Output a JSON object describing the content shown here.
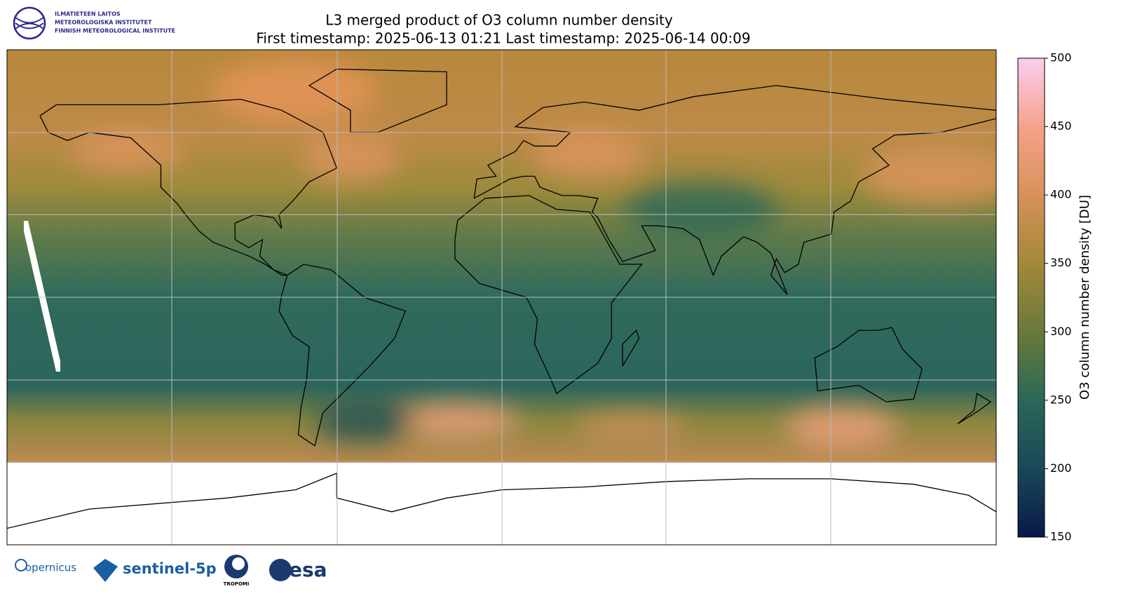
{
  "header": {
    "org_lines": [
      "ILMATIETEEN LAITOS",
      "METEOROLOGISKA INSTITUTET",
      "FINNISH METEOROLOGICAL INSTITUTE"
    ]
  },
  "title": [
    "L3 merged product of O3 column number density",
    "First timestamp: 2025-06-13 01:21   Last timestamp: 2025-06-14 00:09"
  ],
  "colorbar": {
    "label": "O3 column number density [DU]",
    "lim": [
      150,
      500
    ],
    "ticks": [
      150,
      200,
      250,
      300,
      350,
      400,
      450,
      500
    ]
  },
  "logos": [
    "opernicus",
    "sentinel-5p",
    "TROPOMI",
    "esa"
  ]
}
